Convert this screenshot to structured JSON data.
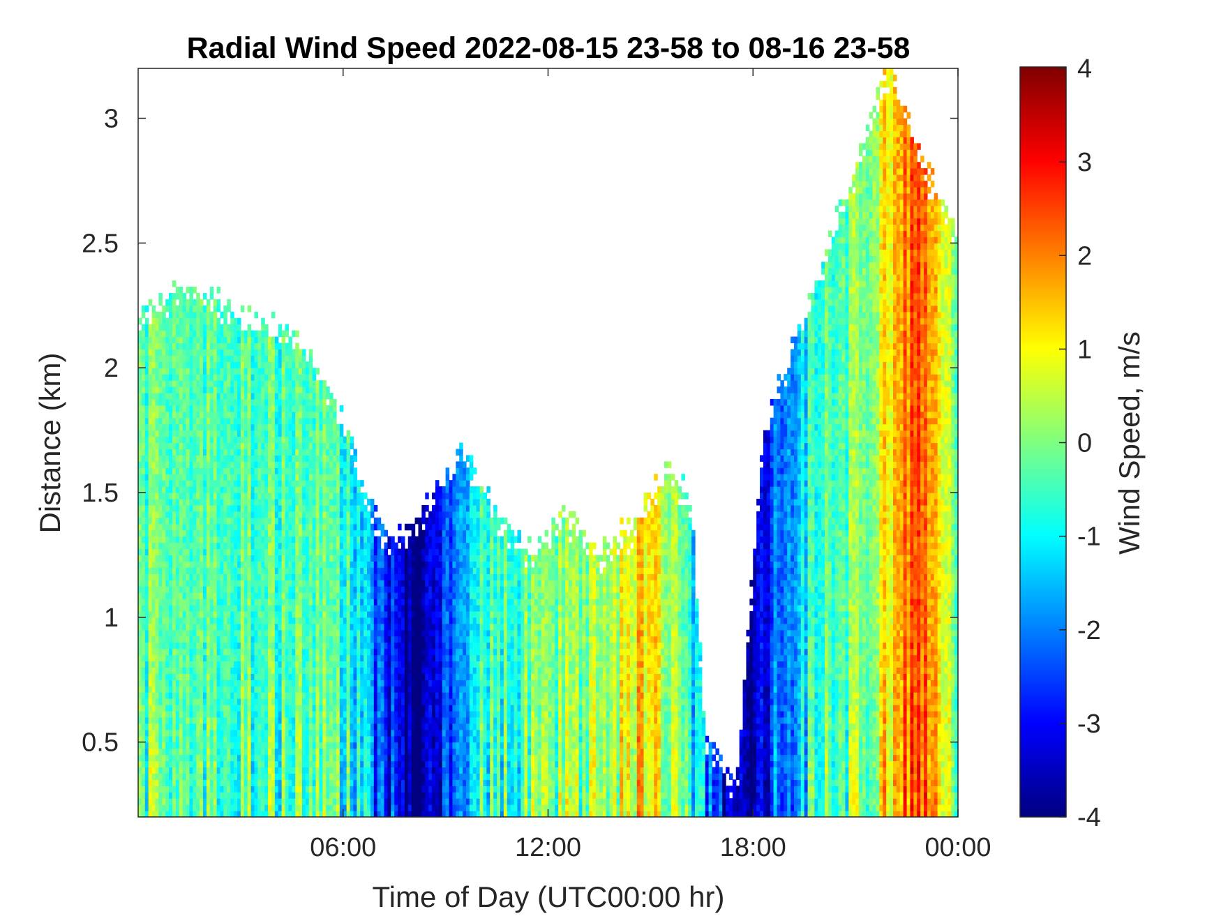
{
  "chart_data": {
    "type": "heatmap",
    "title": "Radial Wind Speed 2022-08-15 23-58 to 08-16 23-58",
    "xlabel": "Time of Day (UTC00:00 hr)",
    "ylabel": "Distance (km)",
    "xlim_hours": [
      0,
      24
    ],
    "ylim": [
      0.2,
      3.2
    ],
    "x_ticks": [
      {
        "hour": 6,
        "label": "06:00"
      },
      {
        "hour": 12,
        "label": "12:00"
      },
      {
        "hour": 18,
        "label": "18:00"
      },
      {
        "hour": 24,
        "label": "00:00"
      }
    ],
    "y_ticks": [
      {
        "value": 0.5,
        "label": "0.5"
      },
      {
        "value": 1,
        "label": "1"
      },
      {
        "value": 1.5,
        "label": "1.5"
      },
      {
        "value": 2,
        "label": "2"
      },
      {
        "value": 2.5,
        "label": "2.5"
      },
      {
        "value": 3,
        "label": "3"
      }
    ],
    "colorbar": {
      "label": "Wind Speed, m/s",
      "colormap": "jet",
      "clim": [
        -4,
        4
      ],
      "ticks": [
        {
          "value": 4,
          "label": "4"
        },
        {
          "value": 3,
          "label": "3"
        },
        {
          "value": 2,
          "label": "2"
        },
        {
          "value": 1,
          "label": "1"
        },
        {
          "value": 0,
          "label": "0"
        },
        {
          "value": -1,
          "label": "-1"
        },
        {
          "value": -2,
          "label": "-2"
        },
        {
          "value": -3,
          "label": "-3"
        },
        {
          "value": -4,
          "label": "-4"
        }
      ]
    },
    "data_coverage_top_km": [
      {
        "hour": 0.0,
        "top": 2.2
      },
      {
        "hour": 1.0,
        "top": 2.3
      },
      {
        "hour": 2.0,
        "top": 2.3
      },
      {
        "hour": 3.0,
        "top": 2.2
      },
      {
        "hour": 4.0,
        "top": 2.15
      },
      {
        "hour": 5.0,
        "top": 2.05
      },
      {
        "hour": 6.0,
        "top": 1.8
      },
      {
        "hour": 6.5,
        "top": 1.55
      },
      {
        "hour": 7.0,
        "top": 1.35
      },
      {
        "hour": 7.5,
        "top": 1.3
      },
      {
        "hour": 8.1,
        "top": 1.35
      },
      {
        "hour": 8.5,
        "top": 1.45
      },
      {
        "hour": 9.5,
        "top": 1.65
      },
      {
        "hour": 10.5,
        "top": 1.4
      },
      {
        "hour": 11.5,
        "top": 1.25
      },
      {
        "hour": 12.5,
        "top": 1.4
      },
      {
        "hour": 13.5,
        "top": 1.25
      },
      {
        "hour": 14.5,
        "top": 1.35
      },
      {
        "hour": 15.5,
        "top": 1.6
      },
      {
        "hour": 16.2,
        "top": 1.45
      },
      {
        "hour": 16.6,
        "top": 0.5
      },
      {
        "hour": 17.5,
        "top": 0.3
      },
      {
        "hour": 17.9,
        "top": 1.0
      },
      {
        "hour": 18.3,
        "top": 1.7
      },
      {
        "hour": 19.0,
        "top": 2.0
      },
      {
        "hour": 20.0,
        "top": 2.4
      },
      {
        "hour": 21.0,
        "top": 2.8
      },
      {
        "hour": 22.0,
        "top": 3.2
      },
      {
        "hour": 23.0,
        "top": 2.8
      },
      {
        "hour": 24.0,
        "top": 2.5
      }
    ],
    "typical_speed_ms": [
      {
        "hour": 0,
        "value": -0.3
      },
      {
        "hour": 6,
        "value": -0.5
      },
      {
        "hour": 8.1,
        "value": -4
      },
      {
        "hour": 10,
        "value": -0.6
      },
      {
        "hour": 13.5,
        "value": 0.2
      },
      {
        "hour": 15,
        "value": 1.5
      },
      {
        "hour": 17.6,
        "value": -4
      },
      {
        "hour": 19.5,
        "value": -1
      },
      {
        "hour": 21.5,
        "value": 0.3
      },
      {
        "hour": 22.8,
        "value": 2.5
      },
      {
        "hour": 24,
        "value": -0.3
      }
    ]
  }
}
